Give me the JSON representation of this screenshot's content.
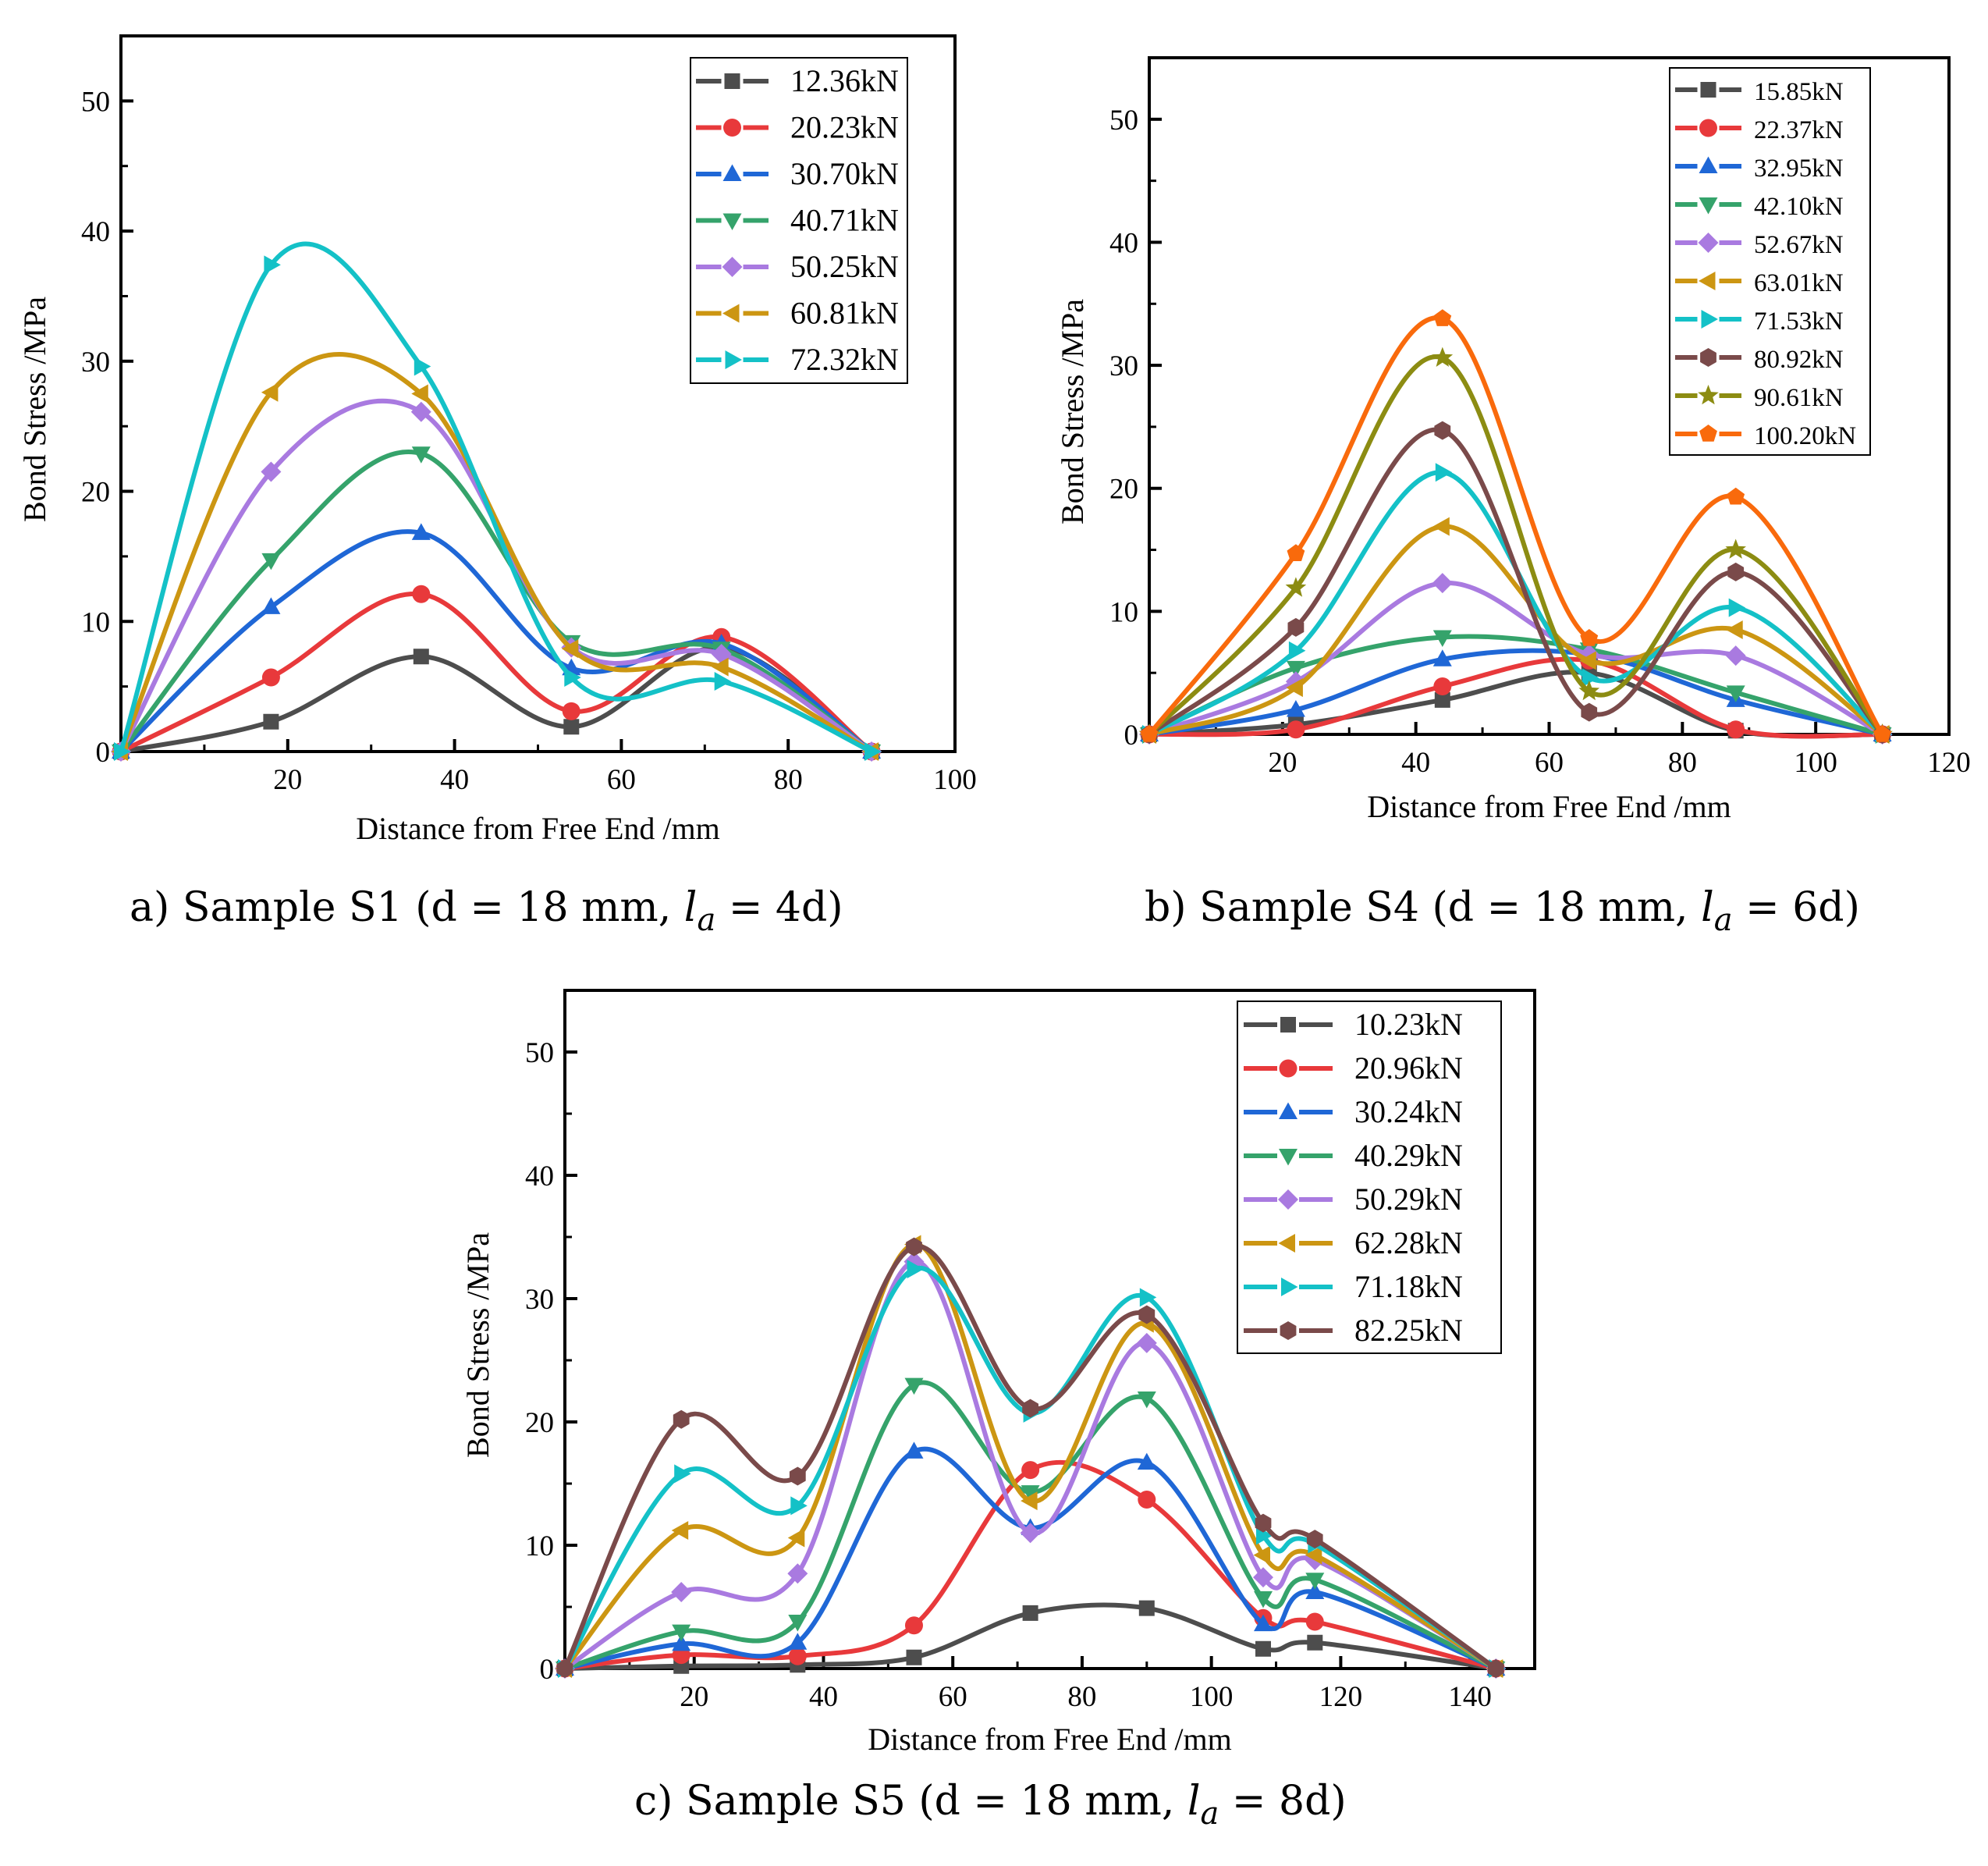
{
  "chart_data": [
    {
      "id": "a",
      "type": "line",
      "caption": {
        "prefix": "a) Sample S1 (d = 18 mm,  ",
        "var_main": "l",
        "var_sub": "a",
        "suffix": "  = 4d)"
      },
      "xlabel": "Distance from Free End /mm",
      "ylabel": "Bond Stress /MPa",
      "xlim": [
        0,
        100
      ],
      "ylim": [
        0,
        55
      ],
      "xticks": [
        20,
        40,
        60,
        80,
        100
      ],
      "xminor": [
        10,
        30,
        50,
        70,
        90
      ],
      "yticks": [
        0,
        10,
        20,
        30,
        40,
        50
      ],
      "yminor": [
        5,
        15,
        25,
        35,
        45
      ],
      "grid": false,
      "legend_position": "top-right",
      "x": [
        0,
        18,
        36,
        54,
        72,
        90
      ],
      "series": [
        {
          "name": "12.36kN",
          "color": "#4d4d4d",
          "marker": "square",
          "values": [
            0,
            2.3,
            7.3,
            1.9,
            8.0,
            0
          ]
        },
        {
          "name": "20.23kN",
          "color": "#e8393b",
          "marker": "circle",
          "values": [
            0,
            5.7,
            12.1,
            3.1,
            8.8,
            0
          ]
        },
        {
          "name": "30.70kN",
          "color": "#1f67d6",
          "marker": "triangle-up",
          "values": [
            0,
            11.1,
            16.8,
            6.4,
            8.3,
            0
          ]
        },
        {
          "name": "40.71kN",
          "color": "#35a36b",
          "marker": "triangle-down",
          "values": [
            0,
            14.7,
            22.9,
            8.4,
            7.9,
            0
          ]
        },
        {
          "name": "50.25kN",
          "color": "#a97ae0",
          "marker": "diamond",
          "values": [
            0,
            21.5,
            26.1,
            8.0,
            7.5,
            0
          ]
        },
        {
          "name": "60.81kN",
          "color": "#cc9612",
          "marker": "triangle-left",
          "values": [
            0,
            27.6,
            27.5,
            7.9,
            6.5,
            0
          ]
        },
        {
          "name": "72.32kN",
          "color": "#14c1c7",
          "marker": "triangle-right",
          "values": [
            0,
            37.4,
            29.6,
            5.7,
            5.4,
            0
          ]
        }
      ]
    },
    {
      "id": "b",
      "type": "line",
      "caption": {
        "prefix": "b) Sample S4 (d = 18 mm,  ",
        "var_main": "l",
        "var_sub": "a",
        "suffix": "  = 6d)"
      },
      "xlabel": "Distance from Free End /mm",
      "ylabel": "Bond Stress /MPa",
      "xlim": [
        0,
        120
      ],
      "ylim": [
        0,
        55
      ],
      "xticks": [
        20,
        40,
        60,
        80,
        100,
        120
      ],
      "xminor": [
        10,
        30,
        50,
        70,
        90,
        110
      ],
      "yticks": [
        0,
        10,
        20,
        30,
        40,
        50
      ],
      "yminor": [
        5,
        15,
        25,
        35,
        45
      ],
      "grid": false,
      "legend_position": "top-right",
      "x": [
        0,
        22,
        44,
        66,
        88,
        110
      ],
      "series": [
        {
          "name": "15.85kN",
          "color": "#4d4d4d",
          "marker": "square",
          "values": [
            0,
            0.8,
            2.8,
            5.0,
            0.3,
            0
          ]
        },
        {
          "name": "22.37kN",
          "color": "#e8393b",
          "marker": "circle",
          "values": [
            0,
            0.4,
            3.9,
            6.0,
            0.4,
            0
          ]
        },
        {
          "name": "32.95kN",
          "color": "#1f67d6",
          "marker": "triangle-up",
          "values": [
            0,
            2.0,
            6.1,
            6.5,
            2.8,
            0
          ]
        },
        {
          "name": "42.10kN",
          "color": "#35a36b",
          "marker": "triangle-down",
          "values": [
            0,
            5.4,
            7.9,
            6.9,
            3.4,
            0
          ]
        },
        {
          "name": "52.67kN",
          "color": "#a97ae0",
          "marker": "diamond",
          "values": [
            0,
            4.3,
            12.3,
            6.5,
            6.4,
            0
          ]
        },
        {
          "name": "63.01kN",
          "color": "#cc9612",
          "marker": "triangle-left",
          "values": [
            0,
            3.8,
            16.9,
            6.0,
            8.5,
            0
          ]
        },
        {
          "name": "71.53kN",
          "color": "#14c1c7",
          "marker": "triangle-right",
          "values": [
            0,
            6.8,
            21.3,
            4.6,
            10.3,
            0
          ]
        },
        {
          "name": "80.92kN",
          "color": "#7a4a4a",
          "marker": "hexagon",
          "values": [
            0,
            8.7,
            24.7,
            1.8,
            13.2,
            0
          ]
        },
        {
          "name": "90.61kN",
          "color": "#8c8c12",
          "marker": "star",
          "values": [
            0,
            11.9,
            30.6,
            3.5,
            15.0,
            0
          ]
        },
        {
          "name": "100.20kN",
          "color": "#f96a0c",
          "marker": "pentagon",
          "values": [
            0,
            14.7,
            33.8,
            7.8,
            19.3,
            0
          ]
        }
      ]
    },
    {
      "id": "c",
      "type": "line",
      "caption": {
        "prefix": "c) Sample S5 (d = 18 mm,  ",
        "var_main": "l",
        "var_sub": "a",
        "suffix": "  = 8d)"
      },
      "xlabel": "Distance from Free End /mm",
      "ylabel": "Bond Stress /MPa",
      "xlim": [
        0,
        150
      ],
      "ylim": [
        0,
        55
      ],
      "xticks": [
        20,
        40,
        60,
        80,
        100,
        120,
        140
      ],
      "xminor": [
        10,
        30,
        50,
        70,
        90,
        110,
        130
      ],
      "yticks": [
        0,
        10,
        20,
        30,
        40,
        50
      ],
      "yminor": [
        5,
        15,
        25,
        35,
        45
      ],
      "grid": false,
      "legend_position": "top-right",
      "x": [
        0,
        18,
        36,
        54,
        72,
        90,
        108,
        116,
        144
      ],
      "series": [
        {
          "name": "10.23kN",
          "color": "#4d4d4d",
          "marker": "square",
          "values": [
            0,
            0.2,
            0.3,
            0.9,
            4.5,
            4.9,
            1.6,
            2.1,
            0
          ]
        },
        {
          "name": "20.96kN",
          "color": "#e8393b",
          "marker": "circle",
          "values": [
            0,
            1.1,
            1.0,
            3.5,
            16.1,
            13.7,
            4.1,
            3.8,
            0
          ]
        },
        {
          "name": "30.24kN",
          "color": "#1f67d6",
          "marker": "triangle-up",
          "values": [
            0,
            2.0,
            2.1,
            17.6,
            11.4,
            16.7,
            3.6,
            6.2,
            0
          ]
        },
        {
          "name": "40.29kN",
          "color": "#35a36b",
          "marker": "triangle-down",
          "values": [
            0,
            3.0,
            3.8,
            23.0,
            14.3,
            21.9,
            5.7,
            7.2,
            0
          ]
        },
        {
          "name": "50.29kN",
          "color": "#a97ae0",
          "marker": "diamond",
          "values": [
            0,
            6.2,
            7.7,
            33.0,
            11.0,
            26.4,
            7.4,
            8.8,
            0
          ]
        },
        {
          "name": "62.28kN",
          "color": "#cc9612",
          "marker": "triangle-left",
          "values": [
            0,
            11.2,
            10.6,
            34.4,
            13.6,
            28.0,
            9.2,
            9.2,
            0
          ]
        },
        {
          "name": "71.18kN",
          "color": "#14c1c7",
          "marker": "triangle-right",
          "values": [
            0,
            15.8,
            13.2,
            32.4,
            20.7,
            30.1,
            10.8,
            10.1,
            0
          ]
        },
        {
          "name": "82.25kN",
          "color": "#7a4a4a",
          "marker": "hexagon",
          "values": [
            0,
            20.2,
            15.6,
            34.2,
            21.1,
            28.7,
            11.8,
            10.5,
            0
          ]
        }
      ]
    }
  ]
}
